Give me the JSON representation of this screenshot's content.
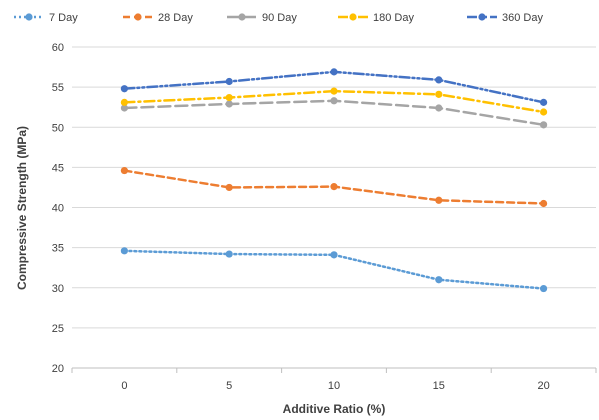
{
  "chart_data": {
    "type": "line",
    "x": [
      0,
      5,
      10,
      15,
      20
    ],
    "categories": [
      "0",
      "5",
      "10",
      "15",
      "20"
    ],
    "xlabel": "Additive Ratio (%)",
    "ylabel": "Compressive Strength (MPa)",
    "ylim": [
      20,
      60
    ],
    "yticks": [
      20,
      25,
      30,
      35,
      40,
      45,
      50,
      55,
      60
    ],
    "grid": "horizontal",
    "legend_position": "top",
    "series": [
      {
        "name": "7 Day",
        "color": "#5b9bd5",
        "dash": "dotted",
        "values": [
          34.6,
          34.2,
          34.1,
          31.0,
          29.9
        ]
      },
      {
        "name": "28 Day",
        "color": "#ed7d31",
        "dash": "dashed",
        "values": [
          44.6,
          42.5,
          42.6,
          40.9,
          40.5
        ]
      },
      {
        "name": "90 Day",
        "color": "#a5a5a5",
        "dash": "long-dash",
        "values": [
          52.4,
          52.9,
          53.3,
          52.4,
          50.3
        ]
      },
      {
        "name": "180 Day",
        "color": "#ffc000",
        "dash": "dash-dot",
        "values": [
          53.1,
          53.7,
          54.5,
          54.1,
          51.9
        ]
      },
      {
        "name": "360 Day",
        "color": "#4472c4",
        "dash": "dash-dot-dot",
        "values": [
          54.8,
          55.7,
          56.9,
          55.9,
          53.1
        ]
      }
    ]
  }
}
